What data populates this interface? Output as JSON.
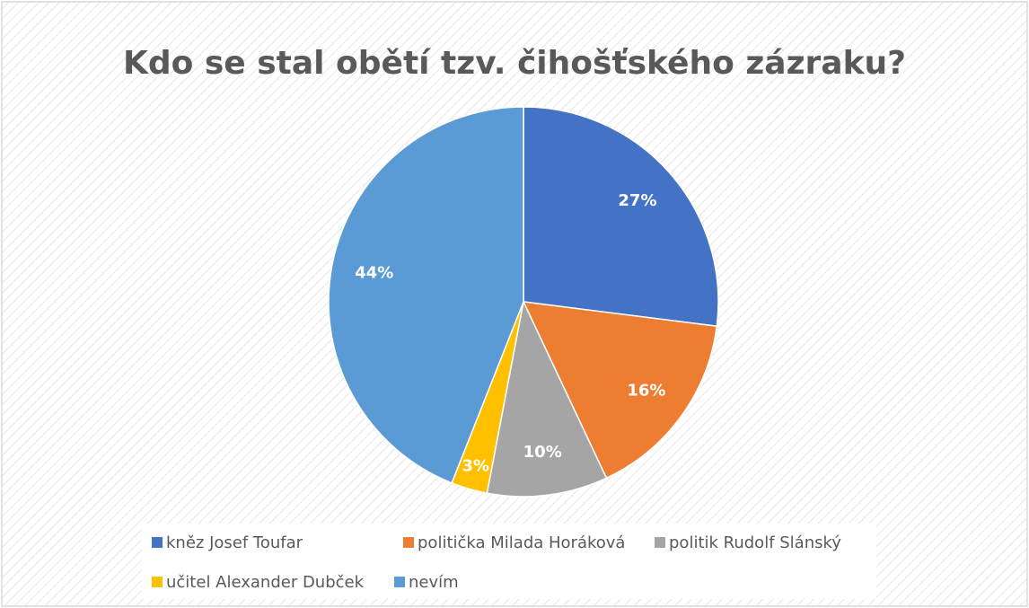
{
  "chart_data": {
    "type": "pie",
    "title": "Kdo se stal obětí tzv. čihošťského zázraku?",
    "categories": [
      "kněz Josef Toufar",
      "politička Milada Horáková",
      "politik Rudolf Slánský",
      "učitel Alexander Dubček",
      "nevím"
    ],
    "values": [
      27,
      16,
      10,
      3,
      44
    ],
    "value_labels": [
      "27%",
      "16%",
      "10%",
      "3%",
      "44%"
    ],
    "colors": [
      "#4472c4",
      "#ed7d31",
      "#a5a5a5",
      "#ffc000",
      "#5b9bd5"
    ],
    "legend": "bottom"
  }
}
